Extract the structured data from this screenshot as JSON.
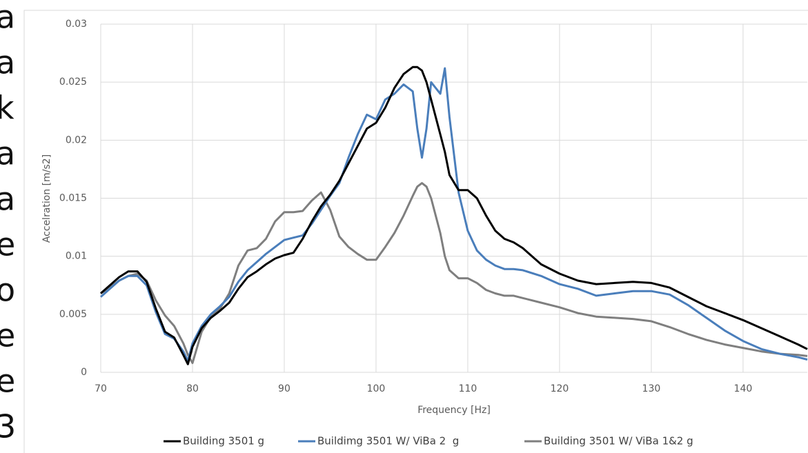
{
  "side_text": [
    "a",
    "a",
    "k",
    "a",
    "a",
    "e",
    "o",
    "e",
    "e",
    "3"
  ],
  "chart_data": {
    "type": "line",
    "x_label": "Frequency [Hz]",
    "y_label": "Accelration [m/s2]",
    "x": [
      70,
      71,
      72,
      73,
      74,
      75,
      76,
      77,
      78,
      79,
      79.5,
      80,
      81,
      82,
      83,
      84,
      85,
      86,
      87,
      88,
      89,
      90,
      91,
      92,
      93,
      94,
      95,
      96,
      97,
      98,
      99,
      100,
      101,
      102,
      103,
      104,
      104.5,
      105,
      105.5,
      106,
      107,
      107.5,
      108,
      109,
      110,
      111,
      112,
      113,
      114,
      115,
      116,
      118,
      120,
      122,
      124,
      126,
      128,
      130,
      132,
      134,
      136,
      138,
      140,
      142,
      144,
      146,
      147
    ],
    "series": [
      {
        "name": "Building 3501 g",
        "color": "#000000",
        "values": [
          0.0068,
          0.0075,
          0.0082,
          0.0087,
          0.0087,
          0.0078,
          0.0055,
          0.0035,
          0.003,
          0.0015,
          0.0007,
          0.0022,
          0.0038,
          0.0047,
          0.0053,
          0.006,
          0.0072,
          0.0082,
          0.0087,
          0.0093,
          0.0098,
          0.0101,
          0.0103,
          0.0115,
          0.013,
          0.0143,
          0.0153,
          0.0165,
          0.018,
          0.0195,
          0.021,
          0.0215,
          0.0228,
          0.0245,
          0.0257,
          0.0263,
          0.0263,
          0.026,
          0.025,
          0.0235,
          0.0205,
          0.019,
          0.017,
          0.0157,
          0.0157,
          0.015,
          0.0135,
          0.0122,
          0.0115,
          0.0112,
          0.0107,
          0.0093,
          0.0085,
          0.0079,
          0.0076,
          0.0077,
          0.0078,
          0.0077,
          0.0073,
          0.0065,
          0.0057,
          0.0051,
          0.0045,
          0.0038,
          0.0031,
          0.0024,
          0.002
        ]
      },
      {
        "name": "Buildimg 3501 W/ ViBa 2  g",
        "color": "#4a7ebb",
        "values": [
          0.0065,
          0.0072,
          0.0079,
          0.0083,
          0.0083,
          0.0075,
          0.0052,
          0.0033,
          0.0029,
          0.0018,
          0.001,
          0.0025,
          0.004,
          0.005,
          0.0057,
          0.0065,
          0.0078,
          0.0088,
          0.0095,
          0.0102,
          0.0108,
          0.0114,
          0.0116,
          0.0118,
          0.0128,
          0.014,
          0.0152,
          0.0163,
          0.0185,
          0.0205,
          0.0222,
          0.0218,
          0.0235,
          0.024,
          0.0248,
          0.0242,
          0.021,
          0.0185,
          0.021,
          0.025,
          0.024,
          0.0262,
          0.022,
          0.0155,
          0.0122,
          0.0105,
          0.0097,
          0.0092,
          0.0089,
          0.0089,
          0.0088,
          0.0083,
          0.0076,
          0.0072,
          0.0066,
          0.0068,
          0.007,
          0.007,
          0.0067,
          0.0058,
          0.0047,
          0.0036,
          0.0027,
          0.002,
          0.0016,
          0.0013,
          0.0011
        ]
      },
      {
        "name": "Building 3501 W/ ViBa 1&2 g",
        "color": "#7f7f7f",
        "values": [
          0.0068,
          0.0073,
          0.0079,
          0.0083,
          0.0085,
          0.0079,
          0.0062,
          0.0049,
          0.004,
          0.0025,
          0.0015,
          0.0008,
          0.0035,
          0.0048,
          0.0055,
          0.0068,
          0.0092,
          0.0105,
          0.0107,
          0.0115,
          0.013,
          0.0138,
          0.0138,
          0.0139,
          0.0148,
          0.0155,
          0.014,
          0.0117,
          0.0108,
          0.0102,
          0.0097,
          0.0097,
          0.0108,
          0.012,
          0.0135,
          0.0152,
          0.016,
          0.0163,
          0.016,
          0.015,
          0.012,
          0.01,
          0.0088,
          0.0081,
          0.0081,
          0.0077,
          0.0071,
          0.0068,
          0.0066,
          0.0066,
          0.0064,
          0.006,
          0.0056,
          0.0051,
          0.0048,
          0.0047,
          0.0046,
          0.0044,
          0.0039,
          0.0033,
          0.0028,
          0.0024,
          0.0021,
          0.0018,
          0.0016,
          0.0015,
          0.0014
        ]
      }
    ],
    "xlim": [
      70,
      147
    ],
    "xticks": [
      70,
      80,
      90,
      100,
      110,
      120,
      130,
      140
    ],
    "ylim": [
      0,
      0.03
    ],
    "yticks": [
      0,
      0.005,
      0.01,
      0.015,
      0.02,
      0.025,
      0.03
    ],
    "grid": true,
    "legend": "bottom"
  }
}
